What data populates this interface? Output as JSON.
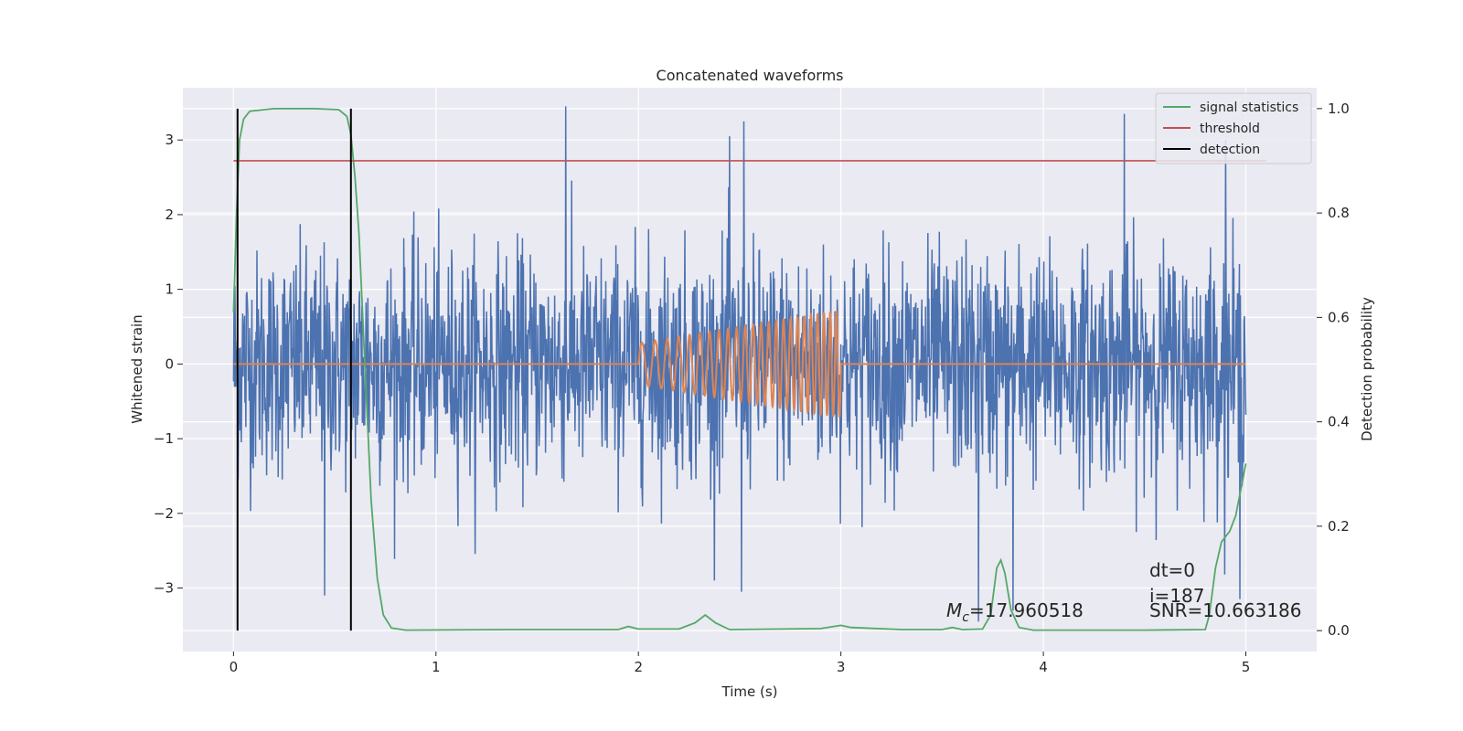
{
  "chart_data": {
    "type": "line",
    "title": "Concatenated waveforms",
    "xlabel": "Time (s)",
    "ylabel_left": "Whitened strain",
    "ylabel_right": "Detection probability",
    "xlim": [
      -0.25,
      5.35
    ],
    "ylim_left": [
      -3.85,
      3.7
    ],
    "ylim_right": [
      -0.04,
      1.04
    ],
    "xticks": [
      0,
      1,
      2,
      3,
      4,
      5
    ],
    "xtick_labels": [
      "0",
      "1",
      "2",
      "3",
      "4",
      "5"
    ],
    "yticks_left": [
      -3,
      -2,
      -1,
      0,
      1,
      2,
      3
    ],
    "ytick_labels_left": [
      "−3",
      "−2",
      "−1",
      "0",
      "1",
      "2",
      "3"
    ],
    "yticks_right": [
      0.0,
      0.2,
      0.4,
      0.6,
      0.8,
      1.0
    ],
    "ytick_labels_right": [
      "0.0",
      "0.2",
      "0.4",
      "0.6",
      "0.8",
      "1.0"
    ],
    "grid": true,
    "legend_position": "top-right",
    "series": [
      {
        "name": "",
        "kind": "noise",
        "axis": "left",
        "color": "#4c72b0",
        "x_range": [
          0,
          5
        ],
        "sigma": 0.75,
        "spikes": [
          {
            "x": 1.64,
            "y": 3.45
          },
          {
            "x": 2.45,
            "y": 3.05
          },
          {
            "x": 2.52,
            "y": 3.25
          },
          {
            "x": 4.4,
            "y": 3.35
          },
          {
            "x": 4.9,
            "y": 3.0
          },
          {
            "x": 0.45,
            "y": -3.1
          },
          {
            "x": 2.51,
            "y": -3.05
          },
          {
            "x": 3.68,
            "y": -3.45
          },
          {
            "x": 3.85,
            "y": -3.3
          },
          {
            "x": 4.97,
            "y": -3.15
          }
        ]
      },
      {
        "name": "",
        "kind": "chirp",
        "axis": "left",
        "color": "#dd8452",
        "x_range": [
          0,
          5
        ],
        "chirp_start": 2.0,
        "chirp_end": 3.0,
        "amplitude_start": 0.28,
        "amplitude_end": 0.72,
        "cycles": 24
      },
      {
        "name": "signal statistics",
        "axis": "right",
        "color": "#55a868",
        "points": [
          [
            0.0,
            0.61
          ],
          [
            0.015,
            0.8
          ],
          [
            0.03,
            0.94
          ],
          [
            0.05,
            0.98
          ],
          [
            0.08,
            0.995
          ],
          [
            0.2,
            1.0
          ],
          [
            0.4,
            1.0
          ],
          [
            0.52,
            0.998
          ],
          [
            0.56,
            0.985
          ],
          [
            0.58,
            0.95
          ],
          [
            0.6,
            0.87
          ],
          [
            0.62,
            0.76
          ],
          [
            0.65,
            0.5
          ],
          [
            0.68,
            0.25
          ],
          [
            0.71,
            0.1
          ],
          [
            0.74,
            0.03
          ],
          [
            0.78,
            0.005
          ],
          [
            0.85,
            0.001
          ],
          [
            1.4,
            0.002
          ],
          [
            1.9,
            0.002
          ],
          [
            1.95,
            0.008
          ],
          [
            2.0,
            0.003
          ],
          [
            2.2,
            0.003
          ],
          [
            2.28,
            0.015
          ],
          [
            2.33,
            0.03
          ],
          [
            2.38,
            0.015
          ],
          [
            2.45,
            0.002
          ],
          [
            2.9,
            0.004
          ],
          [
            3.0,
            0.01
          ],
          [
            3.05,
            0.006
          ],
          [
            3.3,
            0.002
          ],
          [
            3.5,
            0.002
          ],
          [
            3.55,
            0.006
          ],
          [
            3.6,
            0.002
          ],
          [
            3.7,
            0.003
          ],
          [
            3.74,
            0.03
          ],
          [
            3.77,
            0.12
          ],
          [
            3.79,
            0.135
          ],
          [
            3.81,
            0.11
          ],
          [
            3.84,
            0.04
          ],
          [
            3.88,
            0.006
          ],
          [
            3.95,
            0.001
          ],
          [
            4.5,
            0.001
          ],
          [
            4.8,
            0.002
          ],
          [
            4.82,
            0.03
          ],
          [
            4.85,
            0.12
          ],
          [
            4.88,
            0.17
          ],
          [
            4.92,
            0.19
          ],
          [
            4.95,
            0.22
          ],
          [
            4.98,
            0.28
          ],
          [
            5.0,
            0.32
          ]
        ]
      },
      {
        "name": "threshold",
        "axis": "right",
        "color": "#c44e52",
        "y": 0.9,
        "x_range": [
          0,
          5.1
        ]
      },
      {
        "name": "detection",
        "axis": "right",
        "color": "#000000",
        "x_values": [
          0.02,
          0.58
        ],
        "y_range": [
          0.0,
          1.0
        ]
      }
    ],
    "annotations": {
      "mc_symbol": "M",
      "mc_subscript": "c",
      "mc_value": "=17.960518",
      "dt": "dt=0",
      "i": "i=187",
      "snr": "SNR=10.663186"
    }
  }
}
